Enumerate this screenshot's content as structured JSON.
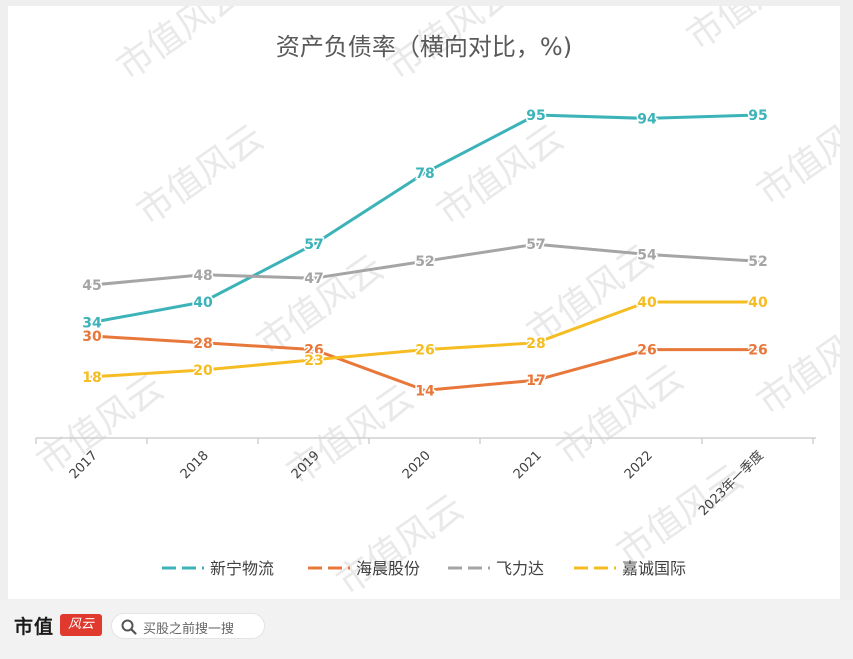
{
  "chart_data": {
    "type": "line",
    "title": "资产负债率（横向对比，%)",
    "categories": [
      "2017",
      "2018",
      "2019",
      "2020",
      "2021",
      "2022",
      "2023年一季度"
    ],
    "ylim": [
      0,
      100
    ],
    "grid": false,
    "legend_position": "bottom",
    "series": [
      {
        "name": "新宁物流",
        "color": "#3bb3b8",
        "values": [
          34,
          40,
          57,
          78,
          95,
          94,
          95
        ]
      },
      {
        "name": "海晨股份",
        "color": "#e8773a",
        "values": [
          30,
          28,
          26,
          14,
          17,
          26,
          26
        ]
      },
      {
        "name": "飞力达",
        "color": "#a5a5a5",
        "values": [
          45,
          48,
          47,
          52,
          57,
          54,
          52
        ]
      },
      {
        "name": "嘉诚国际",
        "color": "#f5bd22",
        "values": [
          18,
          20,
          23,
          26,
          28,
          40,
          40
        ]
      }
    ],
    "watermark_text": "市值风云"
  },
  "footer": {
    "brand": "市值",
    "brand_seal": "风云",
    "search_placeholder": "买股之前搜一搜"
  }
}
